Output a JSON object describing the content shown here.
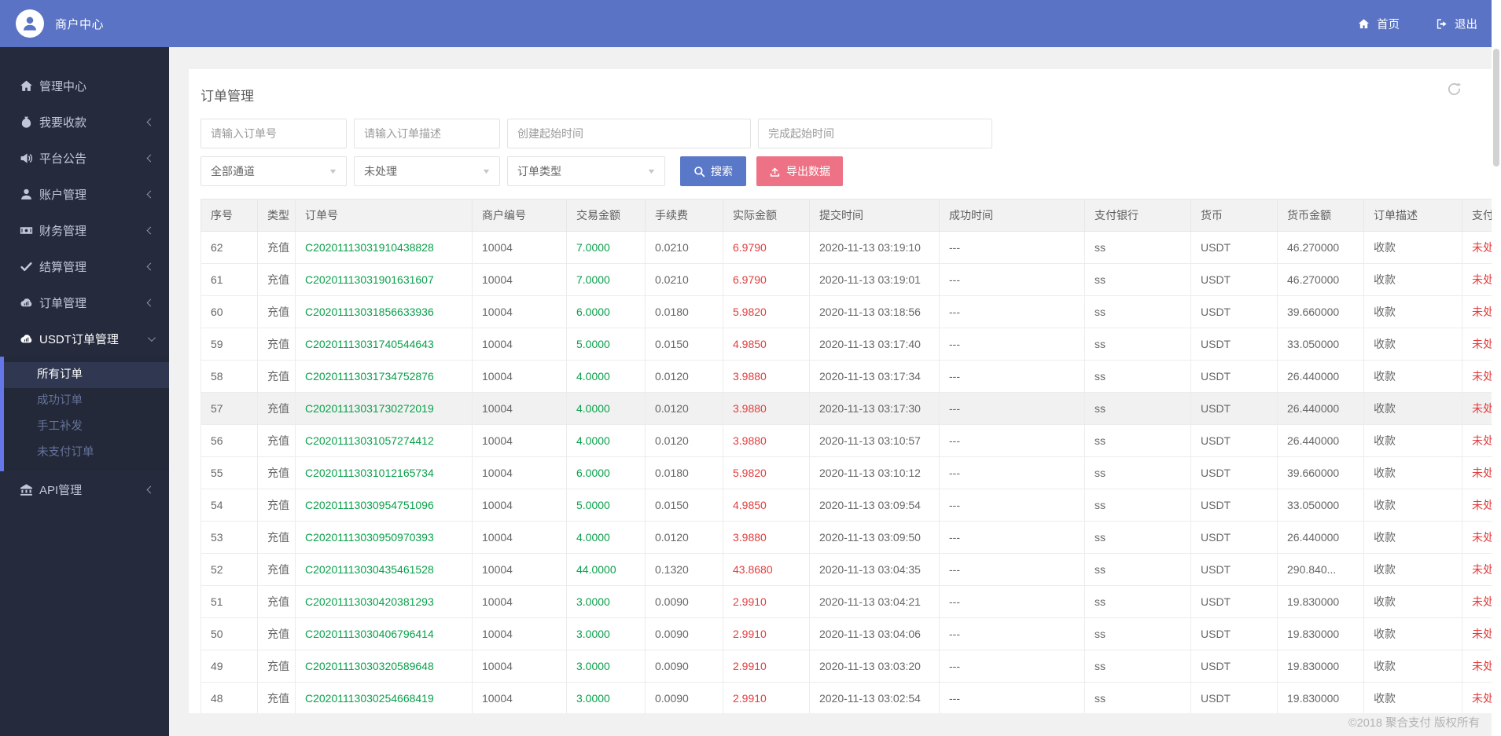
{
  "topbar": {
    "brand": "商户中心",
    "home_label": "首页",
    "logout_label": "退出"
  },
  "sidebar": {
    "items": [
      {
        "id": "dashboard",
        "label": "管理中心",
        "icon": "home",
        "chevron": "none"
      },
      {
        "id": "collect",
        "label": "我要收款",
        "icon": "money-bag",
        "chevron": "left"
      },
      {
        "id": "announcement",
        "label": "平台公告",
        "icon": "speaker",
        "chevron": "left"
      },
      {
        "id": "account",
        "label": "账户管理",
        "icon": "user",
        "chevron": "left"
      },
      {
        "id": "finance",
        "label": "财务管理",
        "icon": "banknote",
        "chevron": "left"
      },
      {
        "id": "settlement",
        "label": "结算管理",
        "icon": "check",
        "chevron": "left"
      },
      {
        "id": "orders",
        "label": "订单管理",
        "icon": "cloud",
        "chevron": "left"
      },
      {
        "id": "usdt-orders",
        "label": "USDT订单管理",
        "icon": "cloud",
        "chevron": "down",
        "active": true,
        "children": [
          {
            "id": "all-orders",
            "label": "所有订单",
            "active": true
          },
          {
            "id": "success-orders",
            "label": "成功订单"
          },
          {
            "id": "manual-reissue",
            "label": "手工补发"
          },
          {
            "id": "unpaid-orders",
            "label": "未支付订单"
          }
        ]
      },
      {
        "id": "api",
        "label": "API管理",
        "icon": "bank",
        "chevron": "left"
      }
    ]
  },
  "page": {
    "title": "订单管理",
    "filters": {
      "order_no_placeholder": "请输入订单号",
      "order_desc_placeholder": "请输入订单描述",
      "create_time_placeholder": "创建起始时间",
      "finish_time_placeholder": "完成起始时间",
      "channel_value": "全部通道",
      "status_value": "未处理",
      "order_type_value": "订单类型",
      "search_label": "搜索",
      "export_label": "导出数据"
    },
    "table": {
      "columns": [
        "序号",
        "类型",
        "订单号",
        "商户编号",
        "交易金额",
        "手续费",
        "实际金额",
        "提交时间",
        "成功时间",
        "支付银行",
        "货币",
        "货币金额",
        "订单描述",
        "支付状态"
      ],
      "highlighted_row": 5,
      "rows": [
        [
          "62",
          "充值",
          "C20201113031910438828",
          "10004",
          "7.0000",
          "0.0210",
          "6.9790",
          "2020-11-13 03:19:10",
          "---",
          "ss",
          "USDT",
          "46.270000",
          "收款",
          "未处理"
        ],
        [
          "61",
          "充值",
          "C20201113031901631607",
          "10004",
          "7.0000",
          "0.0210",
          "6.9790",
          "2020-11-13 03:19:01",
          "---",
          "ss",
          "USDT",
          "46.270000",
          "收款",
          "未处理"
        ],
        [
          "60",
          "充值",
          "C20201113031856633936",
          "10004",
          "6.0000",
          "0.0180",
          "5.9820",
          "2020-11-13 03:18:56",
          "---",
          "ss",
          "USDT",
          "39.660000",
          "收款",
          "未处理"
        ],
        [
          "59",
          "充值",
          "C20201113031740544643",
          "10004",
          "5.0000",
          "0.0150",
          "4.9850",
          "2020-11-13 03:17:40",
          "---",
          "ss",
          "USDT",
          "33.050000",
          "收款",
          "未处理"
        ],
        [
          "58",
          "充值",
          "C20201113031734752876",
          "10004",
          "4.0000",
          "0.0120",
          "3.9880",
          "2020-11-13 03:17:34",
          "---",
          "ss",
          "USDT",
          "26.440000",
          "收款",
          "未处理"
        ],
        [
          "57",
          "充值",
          "C20201113031730272019",
          "10004",
          "4.0000",
          "0.0120",
          "3.9880",
          "2020-11-13 03:17:30",
          "---",
          "ss",
          "USDT",
          "26.440000",
          "收款",
          "未处理"
        ],
        [
          "56",
          "充值",
          "C20201113031057274412",
          "10004",
          "4.0000",
          "0.0120",
          "3.9880",
          "2020-11-13 03:10:57",
          "---",
          "ss",
          "USDT",
          "26.440000",
          "收款",
          "未处理"
        ],
        [
          "55",
          "充值",
          "C20201113031012165734",
          "10004",
          "6.0000",
          "0.0180",
          "5.9820",
          "2020-11-13 03:10:12",
          "---",
          "ss",
          "USDT",
          "39.660000",
          "收款",
          "未处理"
        ],
        [
          "54",
          "充值",
          "C20201113030954751096",
          "10004",
          "5.0000",
          "0.0150",
          "4.9850",
          "2020-11-13 03:09:54",
          "---",
          "ss",
          "USDT",
          "33.050000",
          "收款",
          "未处理"
        ],
        [
          "53",
          "充值",
          "C20201113030950970393",
          "10004",
          "4.0000",
          "0.0120",
          "3.9880",
          "2020-11-13 03:09:50",
          "---",
          "ss",
          "USDT",
          "26.440000",
          "收款",
          "未处理"
        ],
        [
          "52",
          "充值",
          "C20201113030435461528",
          "10004",
          "44.0000",
          "0.1320",
          "43.8680",
          "2020-11-13 03:04:35",
          "---",
          "ss",
          "USDT",
          "290.840...",
          "收款",
          "未处理"
        ],
        [
          "51",
          "充值",
          "C20201113030420381293",
          "10004",
          "3.0000",
          "0.0090",
          "2.9910",
          "2020-11-13 03:04:21",
          "---",
          "ss",
          "USDT",
          "19.830000",
          "收款",
          "未处理"
        ],
        [
          "50",
          "充值",
          "C20201113030406796414",
          "10004",
          "3.0000",
          "0.0090",
          "2.9910",
          "2020-11-13 03:04:06",
          "---",
          "ss",
          "USDT",
          "19.830000",
          "收款",
          "未处理"
        ],
        [
          "49",
          "充值",
          "C20201113030320589648",
          "10004",
          "3.0000",
          "0.0090",
          "2.9910",
          "2020-11-13 03:03:20",
          "---",
          "ss",
          "USDT",
          "19.830000",
          "收款",
          "未处理"
        ],
        [
          "48",
          "充值",
          "C20201113030254668419",
          "10004",
          "3.0000",
          "0.0090",
          "2.9910",
          "2020-11-13 03:02:54",
          "---",
          "ss",
          "USDT",
          "19.830000",
          "收款",
          "未处理"
        ]
      ]
    },
    "copyright": "©2018 聚合支付 版权所有"
  },
  "colors": {
    "topbar_blue": "#5a73c5",
    "sidebar_dark": "#252b3d",
    "search_blue": "#5a78c8",
    "export_pink": "#ed7285",
    "amount_green": "#08a04a",
    "amount_red": "#e23c3c",
    "submenu_bar_blue": "#6577e8"
  }
}
